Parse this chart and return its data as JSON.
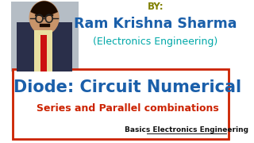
{
  "bg_color": "#ffffff",
  "by_text": "BY:",
  "by_color": "#808000",
  "by_fontsize": 8.5,
  "name_text": "Ram Krishna Sharma",
  "name_color": "#1a5faa",
  "name_fontsize": 12.5,
  "dept_text": "(Electronics Engineering)",
  "dept_color": "#00a8a8",
  "dept_fontsize": 9,
  "title_text": "Diode: Circuit Numerical",
  "title_color": "#1a5faa",
  "title_fontsize": 15,
  "subtitle_text": "Series and Parallel combinations",
  "subtitle_color": "#cc2200",
  "subtitle_fontsize": 9,
  "brand_text": "Basics Electronics Engineering",
  "brand_color": "#111111",
  "brand_fontsize": 6.5,
  "box_edge_color": "#cc2200",
  "photo_bg": "#b5bdc5",
  "skin_color": "#c8946a",
  "suit_color": "#2a2f4a",
  "shirt_color": "#e8dfa0",
  "tie_color": "#cc1111",
  "hair_color": "#1a0a00"
}
